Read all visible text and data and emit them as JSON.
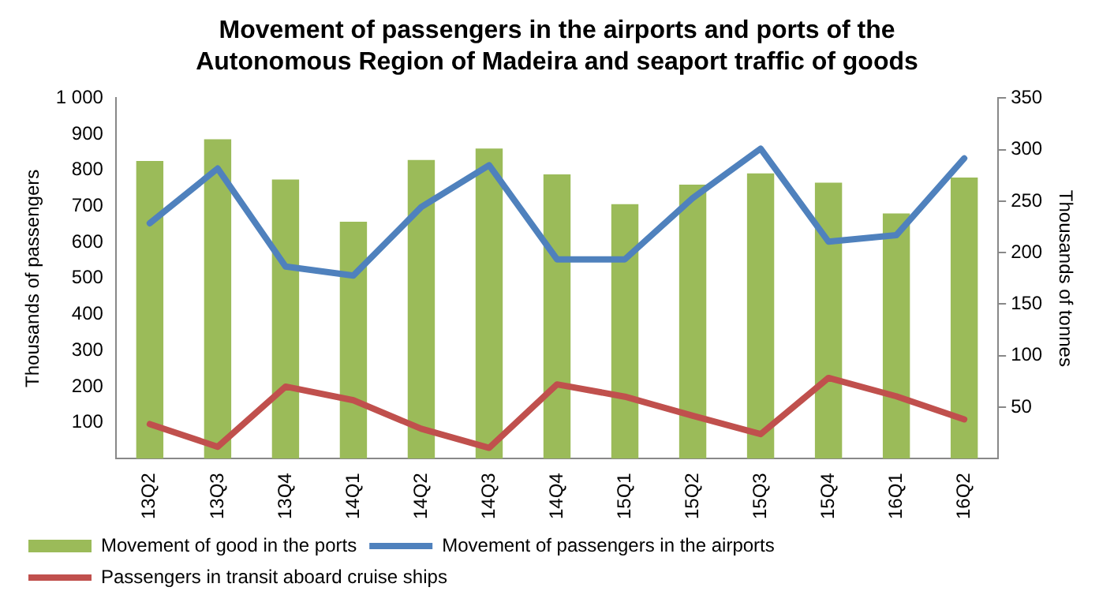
{
  "chart_data": {
    "type": "bar",
    "title": "Movement of passengers in the airports and ports of the Autonomous Region of Madeira and seaport traffic of goods",
    "ylabel": "Thousands of passengers",
    "y2label": "Thousands of tonnes",
    "categories": [
      "13Q2",
      "13Q3",
      "13Q4",
      "14Q1",
      "14Q2",
      "14Q3",
      "14Q4",
      "15Q1",
      "15Q2",
      "15Q3",
      "15Q4",
      "16Q1",
      "16Q2"
    ],
    "series": [
      {
        "name": "Movement of good in the ports",
        "axis": "y2",
        "color": "#9bbb59",
        "values": [
          289,
          310,
          271,
          230,
          290,
          301,
          276,
          247,
          266,
          277,
          268,
          238,
          273
        ]
      },
      {
        "name": "Movement of passengers in the airports",
        "type": "line",
        "color": "#4f81bd",
        "values": [
          653,
          805,
          533,
          508,
          698,
          814,
          553,
          553,
          723,
          860,
          602,
          620,
          833
        ]
      },
      {
        "name": "Passengers in transit aboard cruise ships",
        "type": "line",
        "color": "#c0504d",
        "values": [
          96,
          33,
          200,
          162,
          83,
          30,
          206,
          172,
          119,
          68,
          224,
          173,
          109
        ]
      }
    ],
    "ylim": [
      0,
      1000
    ],
    "yticks": [
      100,
      200,
      300,
      400,
      500,
      600,
      700,
      800,
      900,
      {
        "value": 1000,
        "label": "1 000"
      }
    ],
    "y2lim": [
      0,
      350
    ],
    "y2ticks": [
      50,
      100,
      150,
      200,
      250,
      300,
      350
    ],
    "grid": false,
    "legend": "bottom",
    "marker": "none",
    "line_style": "solid"
  }
}
